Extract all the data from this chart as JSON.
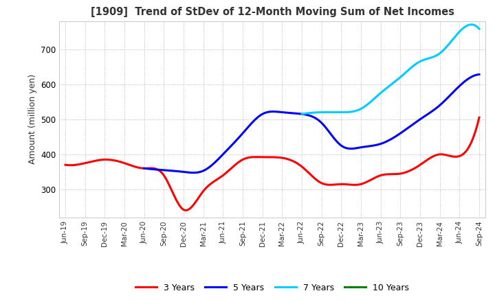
{
  "title": "[1909]  Trend of StDev of 12-Month Moving Sum of Net Incomes",
  "ylabel": "Amount (million yen)",
  "background_color": "#ffffff",
  "plot_bg_color": "#ffffff",
  "grid_color": "#aaaaaa",
  "legend_labels": [
    "3 Years",
    "5 Years",
    "7 Years",
    "10 Years"
  ],
  "legend_colors": [
    "#ff0000",
    "#0000ff",
    "#00ccff",
    "#008000"
  ],
  "x_labels": [
    "Jun-19",
    "Sep-19",
    "Dec-19",
    "Mar-20",
    "Jun-20",
    "Sep-20",
    "Dec-20",
    "Mar-21",
    "Jun-21",
    "Sep-21",
    "Dec-21",
    "Mar-22",
    "Jun-22",
    "Sep-22",
    "Dec-22",
    "Mar-23",
    "Jun-23",
    "Sep-23",
    "Dec-23",
    "Mar-24",
    "Jun-24",
    "Sep-24"
  ],
  "ylim": [
    220,
    780
  ],
  "yticks": [
    300,
    400,
    500,
    600,
    700
  ],
  "series_3y": [
    370,
    375,
    385,
    375,
    360,
    340,
    242,
    295,
    340,
    385,
    392,
    390,
    365,
    318,
    315,
    315,
    340,
    345,
    370,
    400,
    395,
    505
  ],
  "series_5y": [
    null,
    null,
    null,
    null,
    360,
    355,
    350,
    353,
    400,
    460,
    515,
    520,
    515,
    490,
    425,
    420,
    430,
    460,
    500,
    540,
    595,
    628
  ],
  "series_7y": [
    null,
    null,
    null,
    null,
    null,
    null,
    null,
    null,
    null,
    null,
    null,
    null,
    515,
    520,
    520,
    530,
    575,
    620,
    665,
    688,
    750,
    758
  ],
  "series_10y": [
    null,
    null,
    null,
    null,
    null,
    null,
    null,
    null,
    null,
    null,
    null,
    null,
    null,
    null,
    null,
    null,
    null,
    null,
    null,
    null,
    null,
    null
  ]
}
